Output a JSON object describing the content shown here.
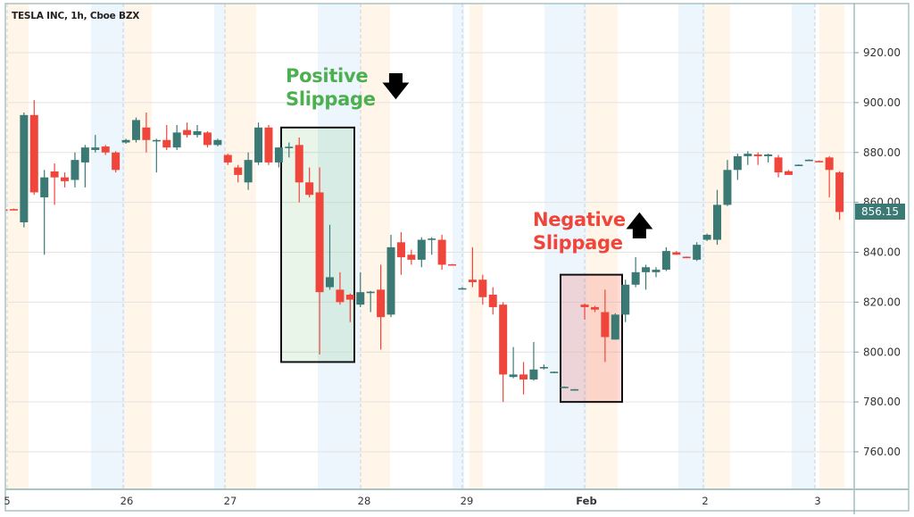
{
  "chart_data": {
    "type": "candlestick",
    "title": "TESLA INC, 1h, Cboe BZX",
    "ylim": [
      745,
      940
    ],
    "yticks": [
      "920.00",
      "900.00",
      "880.00",
      "860.00",
      "840.00",
      "820.00",
      "800.00",
      "780.00",
      "760.00"
    ],
    "ytick_values": [
      920,
      900,
      880,
      860,
      840,
      820,
      800,
      780,
      760
    ],
    "xticks": [
      "5",
      "26",
      "27",
      "28",
      "29",
      "Feb",
      "2",
      "3"
    ],
    "last_price": "856.15",
    "colors": {
      "up": "#3b7a74",
      "down": "#f0453a",
      "premarket": "#fff5e8",
      "afterhours": "#edf5fd"
    },
    "grid": true,
    "candles_ohlc": [
      [
        857.2,
        857.5,
        856.5,
        857
      ],
      [
        857.3,
        857.5,
        856.8,
        857
      ],
      [
        852,
        896,
        850,
        895
      ],
      [
        895,
        901,
        863,
        864
      ],
      [
        862,
        873,
        839,
        870
      ],
      [
        872.4,
        875.6,
        859,
        870
      ],
      [
        870,
        872,
        866,
        868.5
      ],
      [
        869,
        880,
        866,
        877
      ],
      [
        876,
        883,
        866,
        882
      ],
      [
        881,
        887,
        880,
        882
      ],
      [
        882.4,
        883,
        879,
        880
      ],
      [
        880,
        880.5,
        872,
        873
      ],
      [
        884,
        885.5,
        883.5,
        885
      ],
      [
        885,
        894,
        884,
        893
      ],
      [
        890,
        896,
        880,
        885
      ],
      [
        885,
        885.5,
        872,
        885
      ],
      [
        885,
        891,
        881,
        882
      ],
      [
        882,
        891,
        881,
        888
      ],
      [
        889,
        892,
        886,
        887
      ],
      [
        887,
        891,
        886,
        888.5
      ],
      [
        888,
        888.5,
        882,
        883
      ],
      [
        883,
        885.5,
        882.5,
        885
      ],
      [
        879,
        879.5,
        875,
        876
      ],
      [
        874,
        875,
        868,
        871
      ],
      [
        868,
        880,
        865,
        877
      ],
      [
        876,
        892,
        875,
        890
      ],
      [
        890,
        891,
        875,
        876
      ],
      [
        876,
        882,
        874,
        882
      ],
      [
        882,
        884,
        878,
        882.3
      ],
      [
        883,
        886,
        860,
        868
      ],
      [
        868,
        874,
        862,
        863
      ],
      [
        864,
        874,
        799,
        824
      ],
      [
        826,
        851,
        825,
        830
      ],
      [
        825,
        832,
        819,
        820
      ],
      [
        823,
        823.5,
        812,
        821
      ],
      [
        819,
        832,
        818,
        824
      ],
      [
        824,
        824.5,
        816,
        824.2
      ],
      [
        825,
        835,
        801,
        814
      ],
      [
        815,
        847,
        814,
        842
      ],
      [
        844,
        848,
        831,
        838
      ],
      [
        839,
        841,
        835,
        837
      ],
      [
        837,
        846,
        834,
        845
      ],
      [
        845,
        846,
        839,
        845.5
      ],
      [
        845,
        847,
        833,
        835
      ],
      [
        835.2,
        835.3,
        835,
        835
      ],
      [
        825.5,
        826,
        825,
        825.6
      ],
      [
        829,
        842,
        826,
        828
      ],
      [
        829,
        831,
        819,
        822
      ],
      [
        823,
        826,
        815,
        818
      ],
      [
        819,
        820,
        780,
        791
      ],
      [
        790,
        802,
        789.5,
        791
      ],
      [
        791,
        796,
        783,
        789
      ],
      [
        789,
        804,
        788.5,
        793
      ],
      [
        793.5,
        795,
        793,
        794
      ],
      [
        792,
        792.2,
        791.8,
        792.1
      ],
      [
        786,
        786.2,
        785.8,
        786.1
      ],
      [
        785,
        785.2,
        784.8,
        785.1
      ],
      [
        819,
        819.5,
        813,
        818
      ],
      [
        818,
        818.5,
        816,
        817
      ],
      [
        816,
        825,
        796,
        806
      ],
      [
        805,
        815.5,
        805,
        815
      ],
      [
        815,
        829,
        812,
        827
      ],
      [
        827,
        838,
        826,
        832
      ],
      [
        832,
        835,
        825,
        834
      ],
      [
        832,
        834,
        830,
        833
      ],
      [
        833,
        842,
        832.5,
        840.5
      ],
      [
        840,
        840.5,
        839,
        839
      ],
      [
        838.2,
        838.3,
        838,
        838
      ],
      [
        837,
        844,
        836.5,
        843
      ],
      [
        845,
        847.5,
        844.5,
        847
      ],
      [
        845,
        865,
        843,
        859
      ],
      [
        859,
        877,
        858.5,
        873
      ],
      [
        873,
        879.5,
        869,
        878.5
      ],
      [
        878.5,
        880.5,
        875,
        879.5
      ],
      [
        879.2,
        880,
        875,
        878.5
      ],
      [
        878.5,
        879.5,
        876,
        879.2
      ],
      [
        878,
        879,
        870,
        872
      ],
      [
        872.5,
        873,
        871,
        871
      ],
      [
        875,
        875.2,
        874.8,
        875.1
      ],
      [
        877,
        877.2,
        876.8,
        877.1
      ],
      [
        876.6,
        876.8,
        876.4,
        876.5
      ],
      [
        878,
        878.5,
        862,
        873
      ],
      [
        872,
        872.5,
        853,
        856.15
      ]
    ],
    "annotations": {
      "positive": {
        "line1": "Positive",
        "line2": "Slippage",
        "color": "#4caf50",
        "arrow": "down",
        "box_price_range": [
          796,
          890
        ]
      },
      "negative": {
        "line1": "Negative",
        "line2": "Slippage",
        "color": "#f0453a",
        "arrow": "up",
        "box_price_range": [
          780,
          831
        ]
      }
    }
  }
}
